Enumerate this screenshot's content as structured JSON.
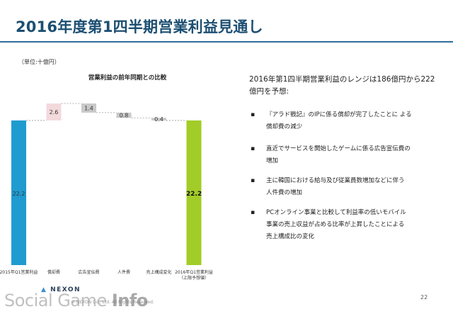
{
  "slide": {
    "title": "2016年度第1四半期営業利益見通し",
    "unit_note": "（単位:十億円）",
    "page_number": "22"
  },
  "summary": "2016年第1四半期営業利益のレンジは186億円から222億円を予想:",
  "bullets": [
    {
      "line1": "『アラド戦記』のIPに係る償却が完了したことに よる",
      "line2": "償却費の減少"
    },
    {
      "line1": "直近でサービスを開始したゲームに係る広告宣伝費の",
      "line2": "増加"
    },
    {
      "line1": "主に韓国における給与及び従業員数増加などに伴う",
      "line2": "人件費の増加"
    },
    {
      "line1": "PCオンライン事業と比較して利益率の低いモバイル",
      "line2": "事業の売上収益が占める比率が上昇したことによる",
      "line3": "売上構成比の変化"
    }
  ],
  "footer": {
    "logo": "NEXON",
    "copyright": "© NEXON Co., Ltd. All Rights Reserved.",
    "watermark_a": "Social Game",
    "watermark_b": "Info"
  },
  "colors": {
    "title": "#1c4f72",
    "start_bar": "#1f9bd0",
    "increase_bar": "#f3d9dc",
    "decrease_bar": "#c9c9c9",
    "end_bar": "#a2cc28"
  },
  "chart_data": {
    "type": "bar",
    "subtype": "waterfall",
    "title": "営業利益の前年同期との比較",
    "categories": [
      "2015年Q1営業利益",
      "償却費",
      "広告宣伝費",
      "人件費",
      "売上構成変化",
      "2016年Q1営業利益",
      "（上限予想値）"
    ],
    "steps": [
      {
        "category": "2015年Q1営業利益",
        "kind": "total",
        "value": 22.2,
        "label": "22.2"
      },
      {
        "category": "償却費",
        "kind": "increase",
        "value": 2.6,
        "label": "2.6"
      },
      {
        "category": "広告宣伝費",
        "kind": "decrease",
        "value": 1.4,
        "label": "1.4"
      },
      {
        "category": "人件費",
        "kind": "decrease",
        "value": 0.8,
        "label": "0.8"
      },
      {
        "category": "売上構成変化",
        "kind": "decrease",
        "value": 0.4,
        "label": "0.4"
      },
      {
        "category": "2016年Q1営業利益",
        "kind": "total",
        "value": 22.2,
        "label": "22.2"
      }
    ],
    "ylim": [
      0,
      26
    ]
  }
}
